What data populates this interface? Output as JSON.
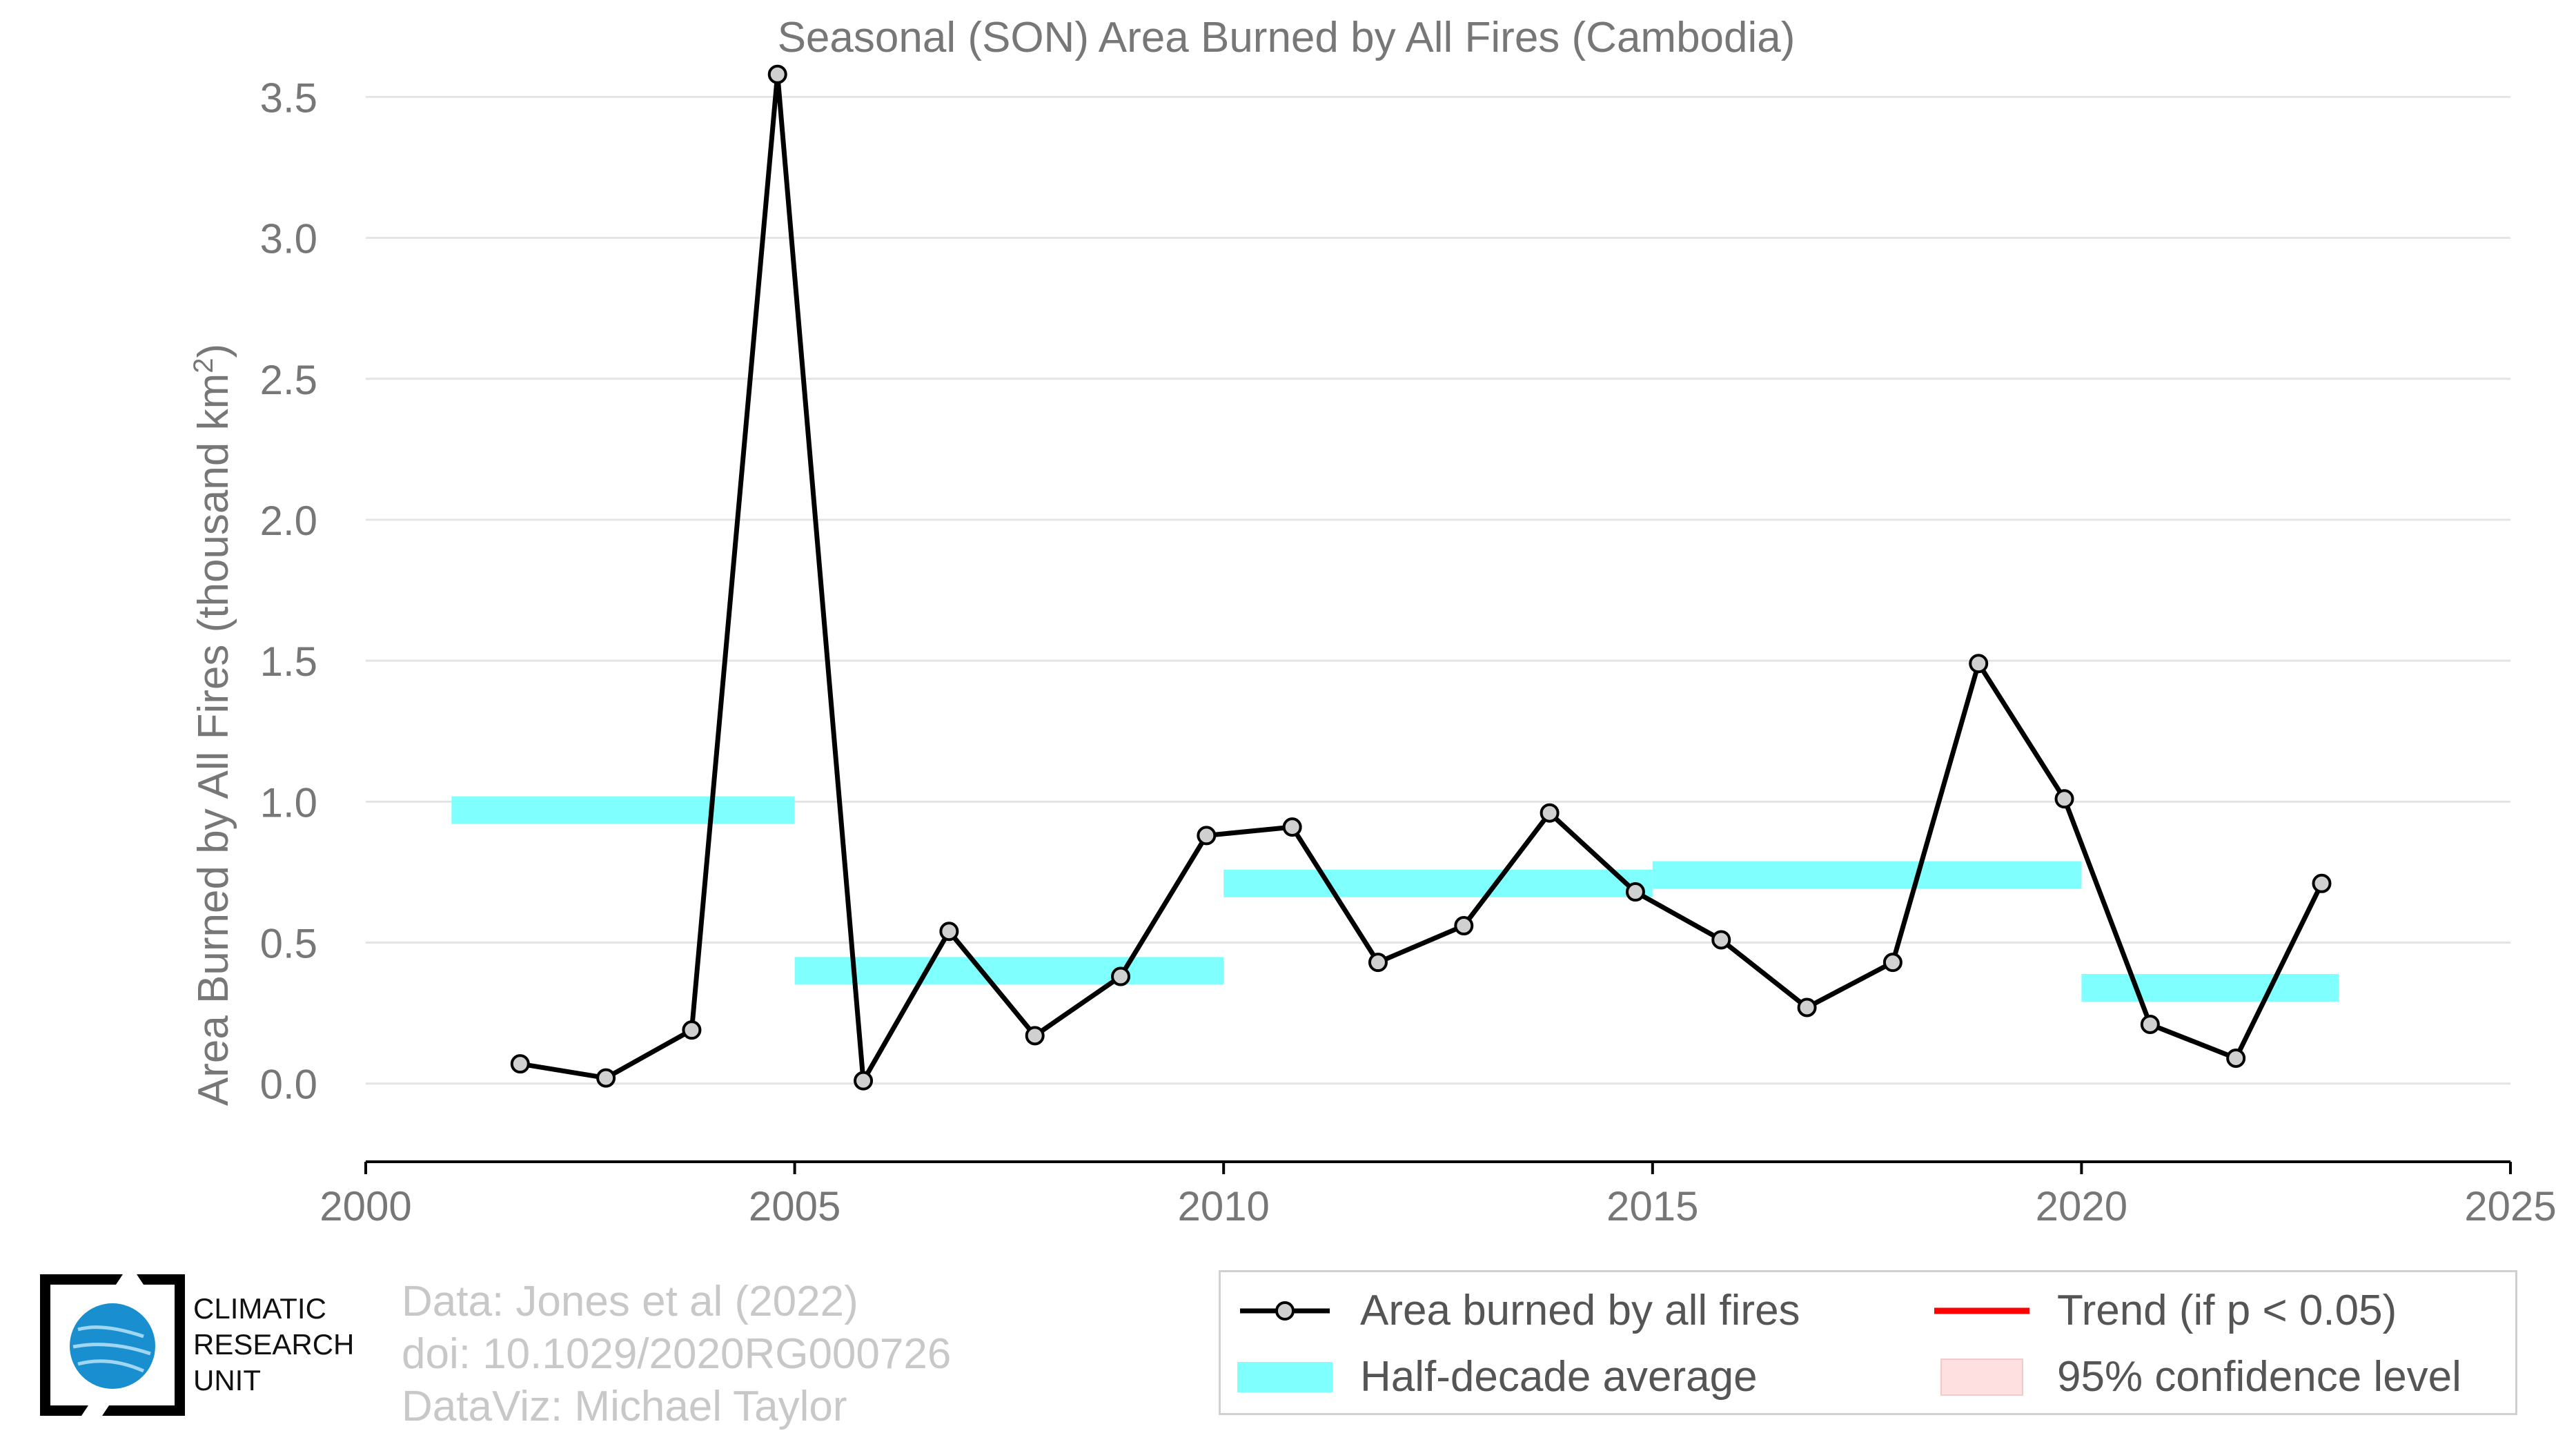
{
  "title": "Seasonal (SON) Area Burned by All Fires (Cambodia)",
  "ylabel": "Area Burned by All Fires (thousand km",
  "ylabel_sup": "2",
  "ylabel_end": ")",
  "credits": {
    "line1": "Data: Jones et al (2022)",
    "line2": "doi: 10.1029/2020RG000726",
    "line3": "DataViz: Michael Taylor"
  },
  "logo": {
    "line1": "CLIMATIC",
    "line2": "RESEARCH",
    "line3": "UNIT"
  },
  "legend": {
    "series_label": "Area burned by all fires",
    "avg_label": "Half-decade average",
    "trend_label": "Trend (if p < 0.05)",
    "ci_label": "95% confidence level"
  },
  "colors": {
    "line": "#000000",
    "marker_fill": "#d0d0d0",
    "half_decade": "#80ffff",
    "trend": "#ff0000",
    "ci": "#ffe0e0",
    "grid": "#e4e4e4",
    "text": "#777777"
  },
  "chart_data": {
    "type": "line",
    "title": "Seasonal (SON) Area Burned by All Fires (Cambodia)",
    "xlabel": "",
    "ylabel": "Area Burned by All Fires (thousand km2)",
    "xlim": [
      2000,
      2025
    ],
    "ylim": [
      -0.27,
      3.55
    ],
    "xticks": [
      2000,
      2005,
      2010,
      2015,
      2020,
      2025
    ],
    "yticks": [
      0.0,
      0.5,
      1.0,
      1.5,
      2.0,
      2.5,
      3.0,
      3.5
    ],
    "ytick_labels": [
      "0.0",
      "0.5",
      "1.0",
      "1.5",
      "2.0",
      "2.5",
      "3.0",
      "3.5"
    ],
    "grid": "horizontal",
    "legend_position": "bottom-right",
    "series": [
      {
        "name": "Area burned by all fires",
        "x": [
          2001.8,
          2002.8,
          2003.8,
          2004.8,
          2005.8,
          2006.8,
          2007.8,
          2008.8,
          2009.8,
          2010.8,
          2011.8,
          2012.8,
          2013.8,
          2014.8,
          2015.8,
          2016.8,
          2017.8,
          2018.8,
          2019.8,
          2020.8,
          2021.8,
          2022.8
        ],
        "y": [
          0.07,
          0.02,
          0.19,
          3.58,
          0.01,
          0.54,
          0.17,
          0.38,
          0.88,
          0.91,
          0.43,
          0.56,
          0.96,
          0.68,
          0.51,
          0.27,
          0.43,
          1.49,
          1.01,
          0.21,
          0.09,
          0.71
        ]
      }
    ],
    "half_decade_averages": [
      {
        "start": 2001,
        "end": 2005,
        "value": 0.97
      },
      {
        "start": 2005,
        "end": 2010,
        "value": 0.4
      },
      {
        "start": 2010,
        "end": 2015,
        "value": 0.71
      },
      {
        "start": 2015,
        "end": 2020,
        "value": 0.74
      },
      {
        "start": 2020,
        "end": 2023,
        "value": 0.34
      }
    ]
  }
}
